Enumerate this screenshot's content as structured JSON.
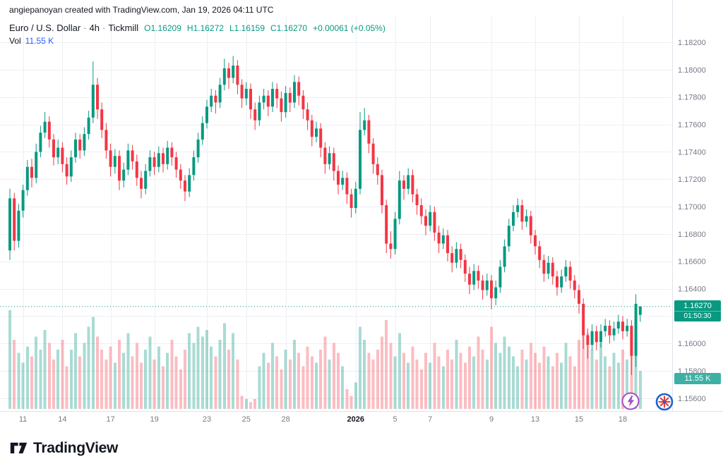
{
  "attribution": "angiepanoyan created with TradingView.com, Jan 19, 2026 04:11 UTC",
  "legend": {
    "symbol_title": "Euro / U.S. Dollar",
    "separator": "·",
    "interval": "4h",
    "exchange": "Tickmill",
    "ohlc": [
      {
        "label": "O",
        "value": "1.16209"
      },
      {
        "label": "H",
        "value": "1.16272"
      },
      {
        "label": "L",
        "value": "1.16159"
      },
      {
        "label": "C",
        "value": "1.16270"
      }
    ],
    "change": "+0.00061 (+0.05%)",
    "vol_label": "Vol",
    "vol_value": "11.55 K"
  },
  "price_scale": {
    "current_price": "1.16270",
    "countdown": "01:50:30",
    "volume_badge": "11.55 K"
  },
  "footer": {
    "brand": "TradingView"
  },
  "colors": {
    "up": "#089981",
    "down": "#F23645",
    "volume_up": "rgba(8,153,129,0.35)",
    "volume_down": "rgba(242,54,69,0.33)",
    "grid": "#EDEFF4",
    "axis_text": "#787B86",
    "axis_text_bold": "#131722",
    "price_line": "#089981"
  },
  "chart_data": {
    "type": "candlestick",
    "title": "Euro / U.S. Dollar · 4h · Tickmill",
    "symbol": "EURUSD",
    "interval": "4h",
    "exchange": "Tickmill",
    "current_price": 1.1627,
    "price_axis_ticks": [
      "1.18200",
      "1.18000",
      "1.17800",
      "1.17600",
      "1.17400",
      "1.17200",
      "1.17000",
      "1.16800",
      "1.16600",
      "1.16400",
      "1.16200",
      "1.16000",
      "1.15800",
      "1.15600"
    ],
    "time_axis": [
      {
        "label": "11",
        "bar": 3
      },
      {
        "label": "14",
        "bar": 12
      },
      {
        "label": "17",
        "bar": 23
      },
      {
        "label": "19",
        "bar": 33
      },
      {
        "label": "23",
        "bar": 45
      },
      {
        "label": "25",
        "bar": 54
      },
      {
        "label": "28",
        "bar": 63
      },
      {
        "label": "2026",
        "bar": 79,
        "bold": true
      },
      {
        "label": "5",
        "bar": 88
      },
      {
        "label": "7",
        "bar": 96
      },
      {
        "label": "9",
        "bar": 110
      },
      {
        "label": "13",
        "bar": 120
      },
      {
        "label": "15",
        "bar": 130
      },
      {
        "label": "18",
        "bar": 140
      }
    ],
    "volume_unit": "K",
    "candles": [
      [
        1.1668,
        1.1713,
        1.1661,
        1.1706
      ],
      [
        1.1706,
        1.171,
        1.1668,
        1.1675
      ],
      [
        1.1675,
        1.1702,
        1.167,
        1.1697
      ],
      [
        1.1697,
        1.1716,
        1.1692,
        1.1712
      ],
      [
        1.1712,
        1.1734,
        1.1708,
        1.1729
      ],
      [
        1.1729,
        1.1735,
        1.1714,
        1.1721
      ],
      [
        1.1721,
        1.1746,
        1.1717,
        1.174
      ],
      [
        1.174,
        1.1759,
        1.1736,
        1.1754
      ],
      [
        1.1754,
        1.1769,
        1.175,
        1.1762
      ],
      [
        1.1762,
        1.1766,
        1.1743,
        1.1749
      ],
      [
        1.1749,
        1.1753,
        1.173,
        1.1736
      ],
      [
        1.1736,
        1.1749,
        1.1731,
        1.1743
      ],
      [
        1.1743,
        1.1747,
        1.1725,
        1.1731
      ],
      [
        1.1731,
        1.1736,
        1.1716,
        1.1722
      ],
      [
        1.1722,
        1.1741,
        1.1718,
        1.1736
      ],
      [
        1.1736,
        1.1754,
        1.1732,
        1.1749
      ],
      [
        1.1749,
        1.1753,
        1.1735,
        1.1741
      ],
      [
        1.1741,
        1.1758,
        1.1737,
        1.1753
      ],
      [
        1.1753,
        1.177,
        1.1749,
        1.1765
      ],
      [
        1.1765,
        1.1806,
        1.1761,
        1.1789
      ],
      [
        1.1789,
        1.1794,
        1.1764,
        1.1771
      ],
      [
        1.1771,
        1.1776,
        1.175,
        1.1756
      ],
      [
        1.1756,
        1.1761,
        1.1735,
        1.1741
      ],
      [
        1.1741,
        1.1746,
        1.1722,
        1.1729
      ],
      [
        1.1729,
        1.1742,
        1.1724,
        1.1737
      ],
      [
        1.1737,
        1.1741,
        1.1712,
        1.1719
      ],
      [
        1.1719,
        1.1732,
        1.1714,
        1.1727
      ],
      [
        1.1727,
        1.1746,
        1.1723,
        1.1741
      ],
      [
        1.1741,
        1.1745,
        1.1727,
        1.1733
      ],
      [
        1.1733,
        1.1738,
        1.1715,
        1.1721
      ],
      [
        1.1721,
        1.1726,
        1.1706,
        1.1713
      ],
      [
        1.1713,
        1.1731,
        1.1709,
        1.1726
      ],
      [
        1.1726,
        1.1741,
        1.1722,
        1.1736
      ],
      [
        1.1736,
        1.174,
        1.1723,
        1.1729
      ],
      [
        1.1729,
        1.1744,
        1.1725,
        1.1739
      ],
      [
        1.1739,
        1.1743,
        1.1725,
        1.1731
      ],
      [
        1.1731,
        1.1748,
        1.1727,
        1.1743
      ],
      [
        1.1743,
        1.1747,
        1.173,
        1.1736
      ],
      [
        1.1736,
        1.174,
        1.1721,
        1.1727
      ],
      [
        1.1727,
        1.1731,
        1.1713,
        1.1719
      ],
      [
        1.1719,
        1.1723,
        1.1704,
        1.1711
      ],
      [
        1.1711,
        1.1728,
        1.1707,
        1.1723
      ],
      [
        1.1723,
        1.1741,
        1.1719,
        1.1736
      ],
      [
        1.1736,
        1.1754,
        1.1732,
        1.1749
      ],
      [
        1.1749,
        1.1766,
        1.1745,
        1.1761
      ],
      [
        1.1761,
        1.1778,
        1.1757,
        1.1773
      ],
      [
        1.1773,
        1.1786,
        1.1769,
        1.1781
      ],
      [
        1.1781,
        1.1785,
        1.1768,
        1.1776
      ],
      [
        1.1776,
        1.1794,
        1.1772,
        1.1789
      ],
      [
        1.1789,
        1.1808,
        1.1785,
        1.1801
      ],
      [
        1.1801,
        1.1805,
        1.1786,
        1.1794
      ],
      [
        1.1794,
        1.181,
        1.179,
        1.1803
      ],
      [
        1.1803,
        1.1807,
        1.1782,
        1.1789
      ],
      [
        1.1789,
        1.1793,
        1.1772,
        1.1779
      ],
      [
        1.1779,
        1.1791,
        1.1774,
        1.1786
      ],
      [
        1.1786,
        1.179,
        1.1764,
        1.1771
      ],
      [
        1.1771,
        1.1776,
        1.1756,
        1.1763
      ],
      [
        1.1763,
        1.1781,
        1.1759,
        1.1776
      ],
      [
        1.1776,
        1.1786,
        1.1771,
        1.1781
      ],
      [
        1.1781,
        1.1785,
        1.1766,
        1.1773
      ],
      [
        1.1773,
        1.1791,
        1.1769,
        1.1786
      ],
      [
        1.1786,
        1.179,
        1.1772,
        1.1779
      ],
      [
        1.1779,
        1.1784,
        1.1762,
        1.1769
      ],
      [
        1.1769,
        1.1788,
        1.1765,
        1.1783
      ],
      [
        1.1783,
        1.1787,
        1.1769,
        1.1776
      ],
      [
        1.1776,
        1.1796,
        1.1772,
        1.1791
      ],
      [
        1.1791,
        1.1795,
        1.1774,
        1.1781
      ],
      [
        1.1781,
        1.1785,
        1.1764,
        1.1771
      ],
      [
        1.1771,
        1.1776,
        1.1756,
        1.1763
      ],
      [
        1.1763,
        1.1767,
        1.1744,
        1.1751
      ],
      [
        1.1751,
        1.1762,
        1.1747,
        1.1757
      ],
      [
        1.1757,
        1.1761,
        1.1736,
        1.1743
      ],
      [
        1.1743,
        1.1747,
        1.1724,
        1.1731
      ],
      [
        1.1731,
        1.1744,
        1.1727,
        1.1739
      ],
      [
        1.1739,
        1.1743,
        1.1719,
        1.1726
      ],
      [
        1.1726,
        1.173,
        1.1709,
        1.1716
      ],
      [
        1.1716,
        1.1726,
        1.1712,
        1.1721
      ],
      [
        1.1721,
        1.1725,
        1.1702,
        1.1709
      ],
      [
        1.1709,
        1.1713,
        1.1692,
        1.1699
      ],
      [
        1.1699,
        1.1718,
        1.1695,
        1.1713
      ],
      [
        1.1713,
        1.1769,
        1.1709,
        1.1756
      ],
      [
        1.1756,
        1.1772,
        1.1752,
        1.1763
      ],
      [
        1.1763,
        1.1767,
        1.1739,
        1.1746
      ],
      [
        1.1746,
        1.175,
        1.1724,
        1.1731
      ],
      [
        1.1731,
        1.1736,
        1.1716,
        1.1723
      ],
      [
        1.1723,
        1.1727,
        1.1695,
        1.1701
      ],
      [
        1.1701,
        1.1705,
        1.1666,
        1.1673
      ],
      [
        1.1673,
        1.1682,
        1.1662,
        1.1669
      ],
      [
        1.1669,
        1.1696,
        1.1665,
        1.1691
      ],
      [
        1.1691,
        1.1726,
        1.1687,
        1.1719
      ],
      [
        1.1719,
        1.1723,
        1.1705,
        1.1713
      ],
      [
        1.1713,
        1.1728,
        1.1709,
        1.1723
      ],
      [
        1.1723,
        1.1727,
        1.1703,
        1.1709
      ],
      [
        1.1709,
        1.1713,
        1.1694,
        1.1701
      ],
      [
        1.1701,
        1.1706,
        1.1687,
        1.1693
      ],
      [
        1.1693,
        1.1698,
        1.1679,
        1.1686
      ],
      [
        1.1686,
        1.1701,
        1.1682,
        1.1696
      ],
      [
        1.1696,
        1.17,
        1.1675,
        1.1681
      ],
      [
        1.1681,
        1.1686,
        1.1666,
        1.1673
      ],
      [
        1.1673,
        1.1684,
        1.1669,
        1.1679
      ],
      [
        1.1679,
        1.1683,
        1.166,
        1.1666
      ],
      [
        1.1666,
        1.1671,
        1.1652,
        1.1659
      ],
      [
        1.1659,
        1.1674,
        1.1655,
        1.1669
      ],
      [
        1.1669,
        1.1673,
        1.1655,
        1.1661
      ],
      [
        1.1661,
        1.1665,
        1.1645,
        1.1651
      ],
      [
        1.1651,
        1.1656,
        1.1636,
        1.1643
      ],
      [
        1.1643,
        1.1658,
        1.1639,
        1.1653
      ],
      [
        1.1653,
        1.1657,
        1.164,
        1.1646
      ],
      [
        1.1646,
        1.165,
        1.1632,
        1.1639
      ],
      [
        1.1639,
        1.1651,
        1.1635,
        1.1646
      ],
      [
        1.1646,
        1.165,
        1.1625,
        1.1633
      ],
      [
        1.1633,
        1.1646,
        1.1628,
        1.1641
      ],
      [
        1.1641,
        1.1661,
        1.1637,
        1.1656
      ],
      [
        1.1656,
        1.1676,
        1.1652,
        1.1671
      ],
      [
        1.1671,
        1.1691,
        1.1667,
        1.1686
      ],
      [
        1.1686,
        1.1701,
        1.1682,
        1.1696
      ],
      [
        1.1696,
        1.1706,
        1.1692,
        1.1701
      ],
      [
        1.1701,
        1.1705,
        1.1683,
        1.1689
      ],
      [
        1.1689,
        1.1698,
        1.1685,
        1.1693
      ],
      [
        1.1693,
        1.1697,
        1.1673,
        1.1679
      ],
      [
        1.1679,
        1.1683,
        1.1665,
        1.1671
      ],
      [
        1.1671,
        1.1675,
        1.1655,
        1.1661
      ],
      [
        1.1661,
        1.1665,
        1.1645,
        1.1651
      ],
      [
        1.1651,
        1.1664,
        1.1647,
        1.1659
      ],
      [
        1.1659,
        1.1663,
        1.1643,
        1.1649
      ],
      [
        1.1649,
        1.1653,
        1.1635,
        1.1641
      ],
      [
        1.1641,
        1.1654,
        1.1637,
        1.1649
      ],
      [
        1.1649,
        1.1661,
        1.1645,
        1.1656
      ],
      [
        1.1656,
        1.166,
        1.164,
        1.1646
      ],
      [
        1.1646,
        1.165,
        1.1633,
        1.1639
      ],
      [
        1.1639,
        1.1643,
        1.1622,
        1.1629
      ],
      [
        1.1629,
        1.1633,
        1.1596,
        1.1606
      ],
      [
        1.1606,
        1.1611,
        1.1589,
        1.1599
      ],
      [
        1.1599,
        1.1614,
        1.1595,
        1.1609
      ],
      [
        1.1609,
        1.1613,
        1.1595,
        1.1601
      ],
      [
        1.1601,
        1.1614,
        1.1597,
        1.1609
      ],
      [
        1.1609,
        1.1618,
        1.1605,
        1.1613
      ],
      [
        1.1613,
        1.1617,
        1.16,
        1.1606
      ],
      [
        1.1606,
        1.1616,
        1.1602,
        1.1611
      ],
      [
        1.1611,
        1.1621,
        1.1607,
        1.1616
      ],
      [
        1.1616,
        1.162,
        1.1603,
        1.1609
      ],
      [
        1.1609,
        1.1618,
        1.1605,
        1.1613
      ],
      [
        1.1613,
        1.1617,
        1.1577,
        1.1591
      ],
      [
        1.1591,
        1.1636,
        1.1583,
        1.1629
      ],
      [
        1.16209,
        1.16272,
        1.16159,
        1.1627
      ]
    ],
    "volumes_k": [
      30,
      21,
      17,
      14,
      19,
      16,
      22,
      18,
      24,
      20,
      15,
      18,
      21,
      13,
      18,
      23,
      16,
      20,
      25,
      28,
      22,
      18,
      15,
      19,
      14,
      21,
      17,
      23,
      16,
      20,
      14,
      18,
      22,
      15,
      19,
      13,
      17,
      21,
      16,
      12,
      18,
      23,
      20,
      25,
      22,
      24,
      19,
      16,
      21,
      26,
      18,
      23,
      15,
      4,
      3,
      2,
      3,
      13,
      17,
      14,
      20,
      16,
      12,
      18,
      15,
      21,
      17,
      13,
      19,
      16,
      14,
      18,
      22,
      15,
      20,
      17,
      13,
      6,
      4,
      8,
      25,
      21,
      17,
      15,
      18,
      22,
      27,
      20,
      16,
      23,
      17,
      14,
      19,
      15,
      12,
      17,
      14,
      20,
      16,
      13,
      18,
      15,
      21,
      17,
      14,
      19,
      16,
      22,
      18,
      15,
      25,
      20,
      17,
      22,
      19,
      16,
      13,
      18,
      15,
      20,
      17,
      14,
      19,
      16,
      13,
      17,
      14,
      20,
      16,
      13,
      21,
      27,
      23,
      18,
      15,
      20,
      16,
      13,
      17,
      14,
      18,
      15,
      23,
      26,
      11.55
    ]
  }
}
